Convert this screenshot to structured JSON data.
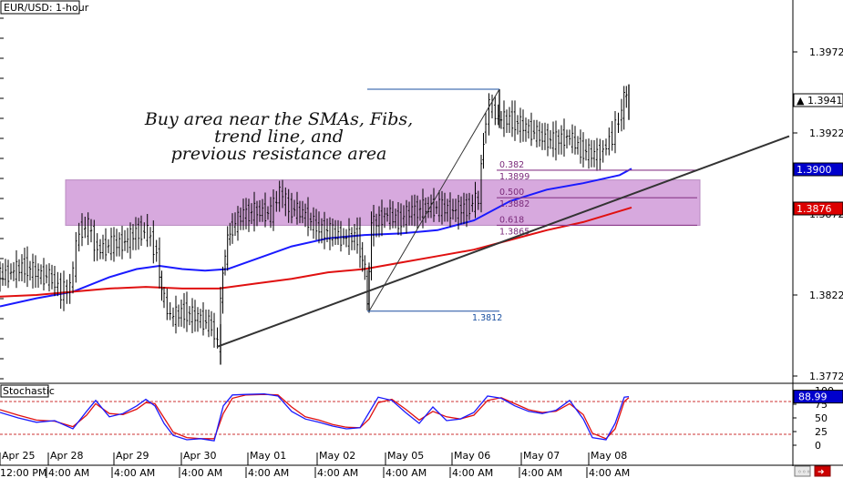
{
  "chart_data": {
    "type": "candlestick",
    "title": "EUR/USD: 1-hour",
    "y_ticks": [
      1.3972,
      1.3922,
      1.3872,
      1.3822,
      1.3772
    ],
    "ylim": [
      1.376,
      1.4
    ],
    "x_date_labels": [
      "Apr 25",
      "Apr 28",
      "Apr 29",
      "Apr 30",
      "May 01",
      "May 02",
      "May 05",
      "May 06",
      "May 07",
      "May 08"
    ],
    "x_time_labels": [
      "12:00 PM",
      "4:00 AM",
      "4:00 AM",
      "4:00 AM",
      "4:00 AM",
      "4:00 AM",
      "4:00 AM",
      "4:00 AM",
      "4:00 AM",
      "4:00 AM"
    ],
    "annotation": [
      "Buy area near the SMAs, Fibs,",
      "trend line, and",
      "previous resistance area"
    ],
    "price_badges": [
      {
        "value": "1.3941",
        "marker": "▲",
        "bg": "#ffffff",
        "fg": "#000000"
      },
      {
        "value": "1.3900",
        "bg": "#0000cc",
        "fg": "#ffffff"
      },
      {
        "value": "1.3876",
        "bg": "#dd0000",
        "fg": "#ffffff"
      }
    ],
    "fib_levels": [
      {
        "ratio": "0.382",
        "price": "1.3899"
      },
      {
        "ratio": "0.500",
        "price": "1.3882"
      },
      {
        "ratio": "0.618",
        "price": "1.3865"
      }
    ],
    "swing_low_label": "1.3812",
    "buy_zone": [
      1.3865,
      1.3893
    ],
    "series": [
      {
        "name": "SMA (blue)",
        "color": "#1a1aff",
        "points": [
          [
            0,
            1.3815
          ],
          [
            40,
            1.382
          ],
          [
            80,
            1.3824
          ],
          [
            120,
            1.3833
          ],
          [
            150,
            1.3838
          ],
          [
            175,
            1.384
          ],
          [
            200,
            1.3838
          ],
          [
            225,
            1.3837
          ],
          [
            250,
            1.3838
          ],
          [
            280,
            1.3844
          ],
          [
            320,
            1.3852
          ],
          [
            360,
            1.3857
          ],
          [
            400,
            1.3859
          ],
          [
            440,
            1.386
          ],
          [
            480,
            1.3862
          ],
          [
            520,
            1.3868
          ],
          [
            560,
            1.388
          ],
          [
            600,
            1.3887
          ],
          [
            640,
            1.3891
          ],
          [
            680,
            1.3896
          ],
          [
            693,
            1.39
          ]
        ]
      },
      {
        "name": "SMA (red)",
        "color": "#e01010",
        "points": [
          [
            0,
            1.3821
          ],
          [
            40,
            1.3822
          ],
          [
            80,
            1.3824
          ],
          [
            120,
            1.3826
          ],
          [
            160,
            1.3827
          ],
          [
            200,
            1.3826
          ],
          [
            240,
            1.3826
          ],
          [
            280,
            1.3829
          ],
          [
            320,
            1.3832
          ],
          [
            360,
            1.3836
          ],
          [
            400,
            1.3838
          ],
          [
            440,
            1.3842
          ],
          [
            480,
            1.3846
          ],
          [
            520,
            1.385
          ],
          [
            560,
            1.3856
          ],
          [
            600,
            1.3862
          ],
          [
            640,
            1.3867
          ],
          [
            693,
            1.3876
          ]
        ]
      }
    ],
    "candles_close_path": [
      [
        0,
        1.3833
      ],
      [
        15,
        1.3836
      ],
      [
        30,
        1.384
      ],
      [
        45,
        1.3835
      ],
      [
        60,
        1.3832
      ],
      [
        70,
        1.3824
      ],
      [
        80,
        1.3827
      ],
      [
        90,
        1.3862
      ],
      [
        100,
        1.3864
      ],
      [
        110,
        1.385
      ],
      [
        125,
        1.3853
      ],
      [
        140,
        1.3855
      ],
      [
        155,
        1.3862
      ],
      [
        165,
        1.386
      ],
      [
        175,
        1.3848
      ],
      [
        180,
        1.3823
      ],
      [
        190,
        1.3808
      ],
      [
        205,
        1.3812
      ],
      [
        220,
        1.3808
      ],
      [
        235,
        1.3803
      ],
      [
        242,
        1.3792
      ],
      [
        247,
        1.3838
      ],
      [
        255,
        1.3862
      ],
      [
        270,
        1.3872
      ],
      [
        285,
        1.3874
      ],
      [
        300,
        1.3872
      ],
      [
        310,
        1.3886
      ],
      [
        320,
        1.3876
      ],
      [
        335,
        1.3872
      ],
      [
        350,
        1.3864
      ],
      [
        365,
        1.3861
      ],
      [
        380,
        1.3857
      ],
      [
        395,
        1.3858
      ],
      [
        403,
        1.3836
      ],
      [
        405,
        1.3814
      ],
      [
        410,
        1.3864
      ],
      [
        425,
        1.3872
      ],
      [
        440,
        1.3868
      ],
      [
        455,
        1.3874
      ],
      [
        470,
        1.3876
      ],
      [
        485,
        1.3876
      ],
      [
        500,
        1.3874
      ],
      [
        515,
        1.3876
      ],
      [
        528,
        1.3881
      ],
      [
        533,
        1.392
      ],
      [
        540,
        1.394
      ],
      [
        550,
        1.393
      ],
      [
        565,
        1.393
      ],
      [
        580,
        1.3925
      ],
      [
        595,
        1.392
      ],
      [
        610,
        1.3917
      ],
      [
        625,
        1.392
      ],
      [
        640,
        1.3912
      ],
      [
        655,
        1.3908
      ],
      [
        665,
        1.3912
      ],
      [
        675,
        1.392
      ],
      [
        682,
        1.393
      ],
      [
        690,
        1.3948
      ]
    ],
    "trend_line": [
      [
        238,
        1.379
      ],
      [
        866,
        1.392
      ]
    ],
    "fib_swing": {
      "low": [
        405,
        1.3812
      ],
      "high": [
        548,
        1.3949
      ]
    },
    "stochastic": {
      "name": "Stochastic",
      "ylim": [
        0,
        100
      ],
      "y_ticks": [
        100,
        75,
        50,
        25,
        0
      ],
      "levels": [
        80,
        20
      ],
      "current_value": "88.99",
      "k_color": "#1a1aff",
      "d_color": "#e01010",
      "k": [
        [
          0,
          60
        ],
        [
          20,
          50
        ],
        [
          40,
          42
        ],
        [
          60,
          45
        ],
        [
          80,
          30
        ],
        [
          95,
          62
        ],
        [
          105,
          82
        ],
        [
          120,
          52
        ],
        [
          135,
          58
        ],
        [
          150,
          72
        ],
        [
          160,
          84
        ],
        [
          170,
          72
        ],
        [
          180,
          40
        ],
        [
          190,
          18
        ],
        [
          205,
          10
        ],
        [
          220,
          12
        ],
        [
          235,
          8
        ],
        [
          245,
          72
        ],
        [
          255,
          92
        ],
        [
          270,
          93
        ],
        [
          290,
          94
        ],
        [
          305,
          90
        ],
        [
          320,
          62
        ],
        [
          335,
          48
        ],
        [
          350,
          42
        ],
        [
          365,
          35
        ],
        [
          380,
          30
        ],
        [
          395,
          32
        ],
        [
          405,
          60
        ],
        [
          415,
          88
        ],
        [
          430,
          82
        ],
        [
          445,
          60
        ],
        [
          460,
          40
        ],
        [
          475,
          70
        ],
        [
          490,
          45
        ],
        [
          505,
          48
        ],
        [
          520,
          60
        ],
        [
          535,
          90
        ],
        [
          550,
          86
        ],
        [
          565,
          72
        ],
        [
          580,
          62
        ],
        [
          595,
          58
        ],
        [
          610,
          64
        ],
        [
          625,
          82
        ],
        [
          640,
          48
        ],
        [
          650,
          14
        ],
        [
          665,
          10
        ],
        [
          675,
          40
        ],
        [
          685,
          88
        ],
        [
          690,
          89
        ]
      ],
      "d": [
        [
          0,
          65
        ],
        [
          20,
          55
        ],
        [
          40,
          46
        ],
        [
          60,
          44
        ],
        [
          80,
          34
        ],
        [
          95,
          55
        ],
        [
          105,
          76
        ],
        [
          120,
          58
        ],
        [
          135,
          56
        ],
        [
          150,
          66
        ],
        [
          160,
          78
        ],
        [
          170,
          76
        ],
        [
          180,
          50
        ],
        [
          190,
          24
        ],
        [
          205,
          14
        ],
        [
          220,
          12
        ],
        [
          235,
          12
        ],
        [
          245,
          58
        ],
        [
          255,
          86
        ],
        [
          270,
          92
        ],
        [
          290,
          93
        ],
        [
          305,
          92
        ],
        [
          320,
          70
        ],
        [
          335,
          52
        ],
        [
          350,
          46
        ],
        [
          365,
          38
        ],
        [
          380,
          33
        ],
        [
          395,
          32
        ],
        [
          405,
          48
        ],
        [
          415,
          78
        ],
        [
          430,
          84
        ],
        [
          445,
          66
        ],
        [
          460,
          46
        ],
        [
          475,
          62
        ],
        [
          490,
          52
        ],
        [
          505,
          48
        ],
        [
          520,
          55
        ],
        [
          535,
          82
        ],
        [
          550,
          87
        ],
        [
          565,
          76
        ],
        [
          580,
          65
        ],
        [
          595,
          60
        ],
        [
          610,
          62
        ],
        [
          625,
          76
        ],
        [
          640,
          56
        ],
        [
          650,
          22
        ],
        [
          665,
          12
        ],
        [
          675,
          30
        ],
        [
          685,
          80
        ],
        [
          690,
          87
        ]
      ]
    }
  }
}
